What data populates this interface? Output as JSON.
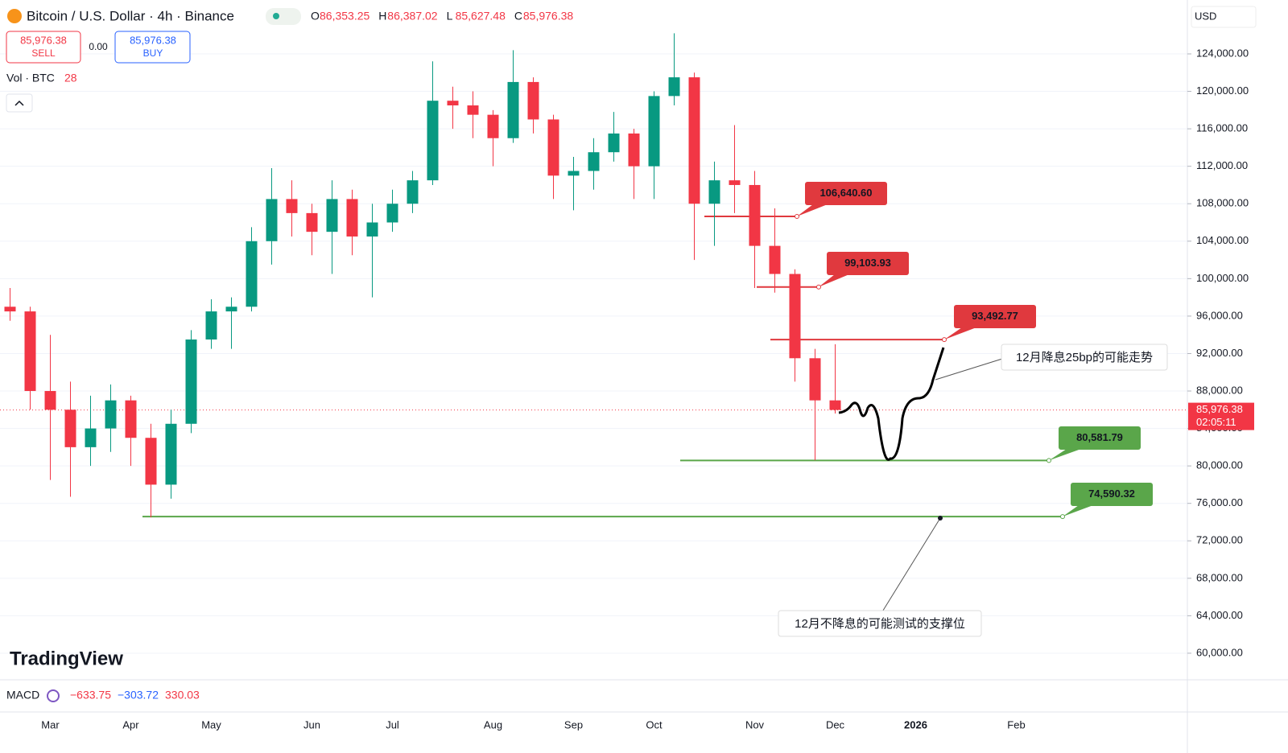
{
  "header": {
    "symbol": "Bitcoin / U.S. Dollar · 4h · Binance",
    "ohlc": [
      {
        "k": "O",
        "v": "86,353.25"
      },
      {
        "k": "H",
        "v": "86,387.02"
      },
      {
        "k": "L",
        "v": "85,627.48"
      },
      {
        "k": "C",
        "v": "85,976.38"
      }
    ],
    "sell_price": "85,976.38",
    "sell": "SELL",
    "spread": "0.00",
    "buy_price": "85,976.38",
    "buy": "BUY",
    "volume_label": "Vol · BTC",
    "volume_value": "28",
    "currency": "USD",
    "brand": "TradingView"
  },
  "macd": {
    "name": "MACD",
    "values": [
      "−633.75",
      "−303.72",
      "330.03"
    ]
  },
  "last_price": {
    "label": "85,976.38",
    "countdown": "02:05:11"
  },
  "annotations": [
    "12月降息25bp的可能走势",
    "12月不降息的可能测试的支撑位"
  ],
  "chart_data": {
    "type": "candlestick",
    "up_color": "#089981",
    "down_color": "#f23645",
    "categories": [
      null,
      null,
      "Mar",
      null,
      null,
      null,
      "Apr",
      null,
      null,
      null,
      "May",
      null,
      null,
      null,
      null,
      "Jun",
      null,
      null,
      null,
      "Jul",
      null,
      null,
      null,
      null,
      "Aug",
      null,
      null,
      null,
      "Sep",
      null,
      null,
      null,
      "Oct",
      null,
      null,
      null,
      null,
      "Nov",
      null,
      null,
      null,
      "Dec",
      null,
      null,
      null,
      "2026",
      null,
      null,
      null,
      null,
      "Feb",
      null
    ],
    "open": [
      97000,
      96500,
      88000,
      86000,
      82000,
      84000,
      87000,
      83000,
      78000,
      84500,
      93500,
      96500,
      97000,
      104000,
      108500,
      107000,
      105000,
      108500,
      104500,
      106000,
      108000,
      110500,
      119000,
      118500,
      117500,
      115000,
      121000,
      117000,
      111000,
      111500,
      113500,
      115500,
      112000,
      119500,
      121500,
      108000,
      110500,
      110000,
      103500,
      100500,
      91500,
      87000,
      null,
      null,
      null,
      null,
      null,
      null,
      null,
      null,
      null,
      null
    ],
    "high": [
      99000,
      97000,
      94000,
      89000,
      87500,
      88700,
      87500,
      84500,
      86000,
      94500,
      97800,
      98000,
      105500,
      111800,
      110500,
      108000,
      110500,
      109500,
      108000,
      109500,
      111500,
      123200,
      120500,
      120000,
      118000,
      124400,
      121500,
      117500,
      113000,
      115000,
      117800,
      116000,
      120000,
      126200,
      122000,
      112500,
      116400,
      111500,
      107500,
      101000,
      92500,
      93000,
      null,
      null,
      null,
      null,
      null,
      null,
      null,
      null,
      null,
      null
    ],
    "low": [
      95500,
      86000,
      78500,
      76700,
      80000,
      81500,
      80000,
      74500,
      76500,
      83500,
      92500,
      92500,
      96500,
      101500,
      104500,
      102500,
      100500,
      102500,
      98000,
      105000,
      107000,
      110000,
      116000,
      115000,
      112000,
      114500,
      115500,
      108500,
      107300,
      109500,
      112500,
      108500,
      108500,
      118500,
      102000,
      103500,
      107000,
      99000,
      98500,
      89000,
      80600,
      85600,
      null,
      null,
      null,
      null,
      null,
      null,
      null,
      null,
      null,
      null
    ],
    "close": [
      96500,
      88000,
      86000,
      82000,
      84000,
      87000,
      83000,
      78000,
      84500,
      93500,
      96500,
      97000,
      104000,
      108500,
      107000,
      105000,
      108500,
      104500,
      106000,
      108000,
      110500,
      119000,
      118500,
      117500,
      115000,
      121000,
      117000,
      111000,
      111500,
      113500,
      115500,
      112000,
      119500,
      121500,
      108000,
      110500,
      110000,
      103500,
      100500,
      91500,
      87000,
      85976.38,
      null,
      null,
      null,
      null,
      null,
      null,
      null,
      null,
      null,
      null
    ],
    "ylim": [
      57160,
      129756
    ],
    "yticks": [
      {
        "value": 60000,
        "label": "60,000.00"
      },
      {
        "value": 64000,
        "label": "64,000.00"
      },
      {
        "value": 68000,
        "label": "68,000.00"
      },
      {
        "value": 72000,
        "label": "72,000.00"
      },
      {
        "value": 76000,
        "label": "76,000.00"
      },
      {
        "value": 80000,
        "label": "80,000.00"
      },
      {
        "value": 84000,
        "label": "84,000.00"
      },
      {
        "value": 88000,
        "label": "88,000.00"
      },
      {
        "value": 92000,
        "label": "92,000.00"
      },
      {
        "value": 96000,
        "label": "96,000.00"
      },
      {
        "value": 100000,
        "label": "100,000.00"
      },
      {
        "value": 104000,
        "label": "104,000.00"
      },
      {
        "value": 108000,
        "label": "108,000.00"
      },
      {
        "value": 112000,
        "label": "112,000.00"
      },
      {
        "value": 116000,
        "label": "116,000.00"
      },
      {
        "value": 120000,
        "label": "120,000.00"
      },
      {
        "value": 124000,
        "label": "124,000.00"
      }
    ],
    "grid": true,
    "levels": [
      {
        "value": 106640.6,
        "label": "106,640.60",
        "color": "#e0393e"
      },
      {
        "value": 99103.93,
        "label": "99,103.93",
        "color": "#e0393e"
      },
      {
        "value": 93492.77,
        "label": "93,492.77",
        "color": "#e0393e"
      },
      {
        "value": 80581.79,
        "label": "80,581.79",
        "color": "#5aa64a"
      },
      {
        "value": 74590.32,
        "label": "74,590.32",
        "color": "#5aa64a"
      }
    ]
  }
}
